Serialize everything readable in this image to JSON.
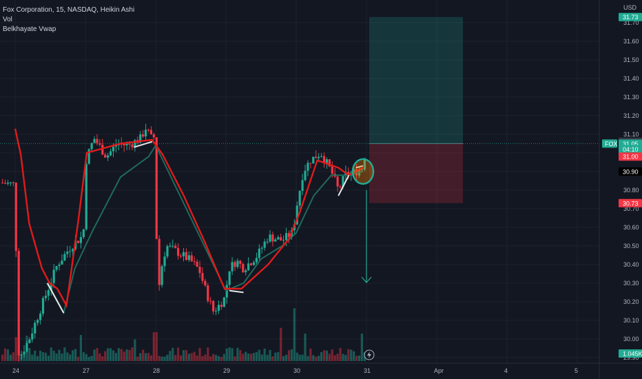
{
  "header": {
    "title": "Fox Corporation, 15, NASDAQ, Heikin Ashi",
    "indicators": [
      "Vol",
      "Belkhayate Vwap"
    ],
    "currency": "USD"
  },
  "chart_data": {
    "type": "candlestick",
    "ylim": [
      29.87,
      31.74
    ],
    "y_ticks": [
      "29.90",
      "30.00",
      "30.10",
      "30.20",
      "30.30",
      "30.40",
      "30.50",
      "30.60",
      "30.70",
      "30.80",
      "30.90",
      "31.00",
      "31.10",
      "31.20",
      "31.30",
      "31.40",
      "31.50",
      "31.60",
      "31.70"
    ],
    "x_labels": [
      {
        "label": "24",
        "pos": 0
      },
      {
        "label": "27",
        "pos": 1
      },
      {
        "label": "28",
        "pos": 2
      },
      {
        "label": "29",
        "pos": 3
      },
      {
        "label": "30",
        "pos": 4
      },
      {
        "label": "31",
        "pos": 5
      },
      {
        "label": "Apr",
        "pos": 6
      },
      {
        "label": "4",
        "pos": 7
      },
      {
        "label": "5",
        "pos": 8
      }
    ],
    "price_tags": [
      {
        "label": "31.73",
        "value": 31.73,
        "color": "#22ab94"
      },
      {
        "label": "31.06",
        "value": 31.06,
        "color": "#363a45"
      },
      {
        "label": "31.05",
        "value": 31.05,
        "color": "#22ab94"
      },
      {
        "label": "04:10",
        "value": 31.02,
        "color": "#22ab94"
      },
      {
        "label": "31.00",
        "value": 30.98,
        "color": "#f23645"
      },
      {
        "label": "30.90",
        "value": 30.9,
        "color": "#000000"
      },
      {
        "label": "30.73",
        "value": 30.73,
        "color": "#f23645"
      },
      {
        "label": "1.045K",
        "value": 29.86,
        "color": "#22ab94"
      }
    ],
    "symbol_tag": "FOX",
    "last_price": 31.05,
    "position": {
      "target": 31.73,
      "entry": 31.05,
      "stop": 30.73
    },
    "red_line_pivots": [
      {
        "pos": 0.0,
        "value": 31.13
      },
      {
        "pos": 0.08,
        "value": 30.99
      },
      {
        "pos": 0.2,
        "value": 30.62
      },
      {
        "pos": 0.38,
        "value": 30.38
      },
      {
        "pos": 0.49,
        "value": 30.3
      },
      {
        "pos": 0.6,
        "value": 30.27
      },
      {
        "pos": 0.73,
        "value": 30.18
      },
      {
        "pos": 0.9,
        "value": 30.64
      },
      {
        "pos": 1.02,
        "value": 31.0
      },
      {
        "pos": 1.5,
        "value": 31.05
      },
      {
        "pos": 1.95,
        "value": 31.07
      },
      {
        "pos": 2.1,
        "value": 30.99
      },
      {
        "pos": 2.4,
        "value": 30.77
      },
      {
        "pos": 2.7,
        "value": 30.52
      },
      {
        "pos": 2.9,
        "value": 30.34
      },
      {
        "pos": 2.98,
        "value": 30.27
      },
      {
        "pos": 3.22,
        "value": 30.27
      },
      {
        "pos": 3.6,
        "value": 30.4
      },
      {
        "pos": 3.9,
        "value": 30.54
      },
      {
        "pos": 4.05,
        "value": 30.68
      },
      {
        "pos": 4.3,
        "value": 30.96
      },
      {
        "pos": 4.6,
        "value": 30.92
      },
      {
        "pos": 4.75,
        "value": 30.88
      },
      {
        "pos": 4.95,
        "value": 30.92
      }
    ],
    "teal_line_pivots": [
      {
        "pos": 0.45,
        "value": 30.3
      },
      {
        "pos": 0.69,
        "value": 30.14
      },
      {
        "pos": 0.85,
        "value": 30.38
      },
      {
        "pos": 1.1,
        "value": 30.58
      },
      {
        "pos": 1.5,
        "value": 30.87
      },
      {
        "pos": 1.9,
        "value": 30.98
      },
      {
        "pos": 2.0,
        "value": 31.04
      },
      {
        "pos": 3.0,
        "value": 30.26
      },
      {
        "pos": 3.25,
        "value": 30.3
      },
      {
        "pos": 3.5,
        "value": 30.43
      },
      {
        "pos": 3.8,
        "value": 30.5
      },
      {
        "pos": 4.0,
        "value": 30.57
      },
      {
        "pos": 4.25,
        "value": 30.77
      },
      {
        "pos": 4.5,
        "value": 30.88
      },
      {
        "pos": 4.75,
        "value": 30.88
      },
      {
        "pos": 4.95,
        "value": 30.9
      }
    ],
    "white_segments": [
      [
        {
          "pos": 0.46,
          "value": 30.3
        },
        {
          "pos": 0.69,
          "value": 30.14
        }
      ],
      [
        {
          "pos": 1.69,
          "value": 31.03
        },
        {
          "pos": 1.95,
          "value": 31.06
        }
      ],
      [
        {
          "pos": 3.05,
          "value": 30.26
        },
        {
          "pos": 3.25,
          "value": 30.25
        }
      ],
      [
        {
          "pos": 4.6,
          "value": 30.77
        },
        {
          "pos": 4.75,
          "value": 30.88
        }
      ],
      [
        {
          "pos": 4.85,
          "value": 30.92
        },
        {
          "pos": 4.95,
          "value": 30.93
        }
      ]
    ],
    "volume_spikes": [
      {
        "pos": 0.0,
        "height": 0.25,
        "up": false
      },
      {
        "pos": 0.03,
        "height": 0.33,
        "up": false
      },
      {
        "pos": 0.18,
        "height": 0.35,
        "up": true
      },
      {
        "pos": 0.95,
        "height": 0.36,
        "up": false
      },
      {
        "pos": 1.7,
        "height": 0.3,
        "up": false
      },
      {
        "pos": 1.96,
        "height": 0.32,
        "up": false
      },
      {
        "pos": 1.99,
        "height": 0.4,
        "up": true
      },
      {
        "pos": 3.79,
        "height": 0.46,
        "up": false
      },
      {
        "pos": 3.97,
        "height": 0.73,
        "up": false
      },
      {
        "pos": 4.14,
        "height": 0.38,
        "up": true
      },
      {
        "pos": 4.95,
        "height": 0.38,
        "up": true
      },
      {
        "pos": 5.0,
        "height": 0.85,
        "up": true
      }
    ]
  }
}
